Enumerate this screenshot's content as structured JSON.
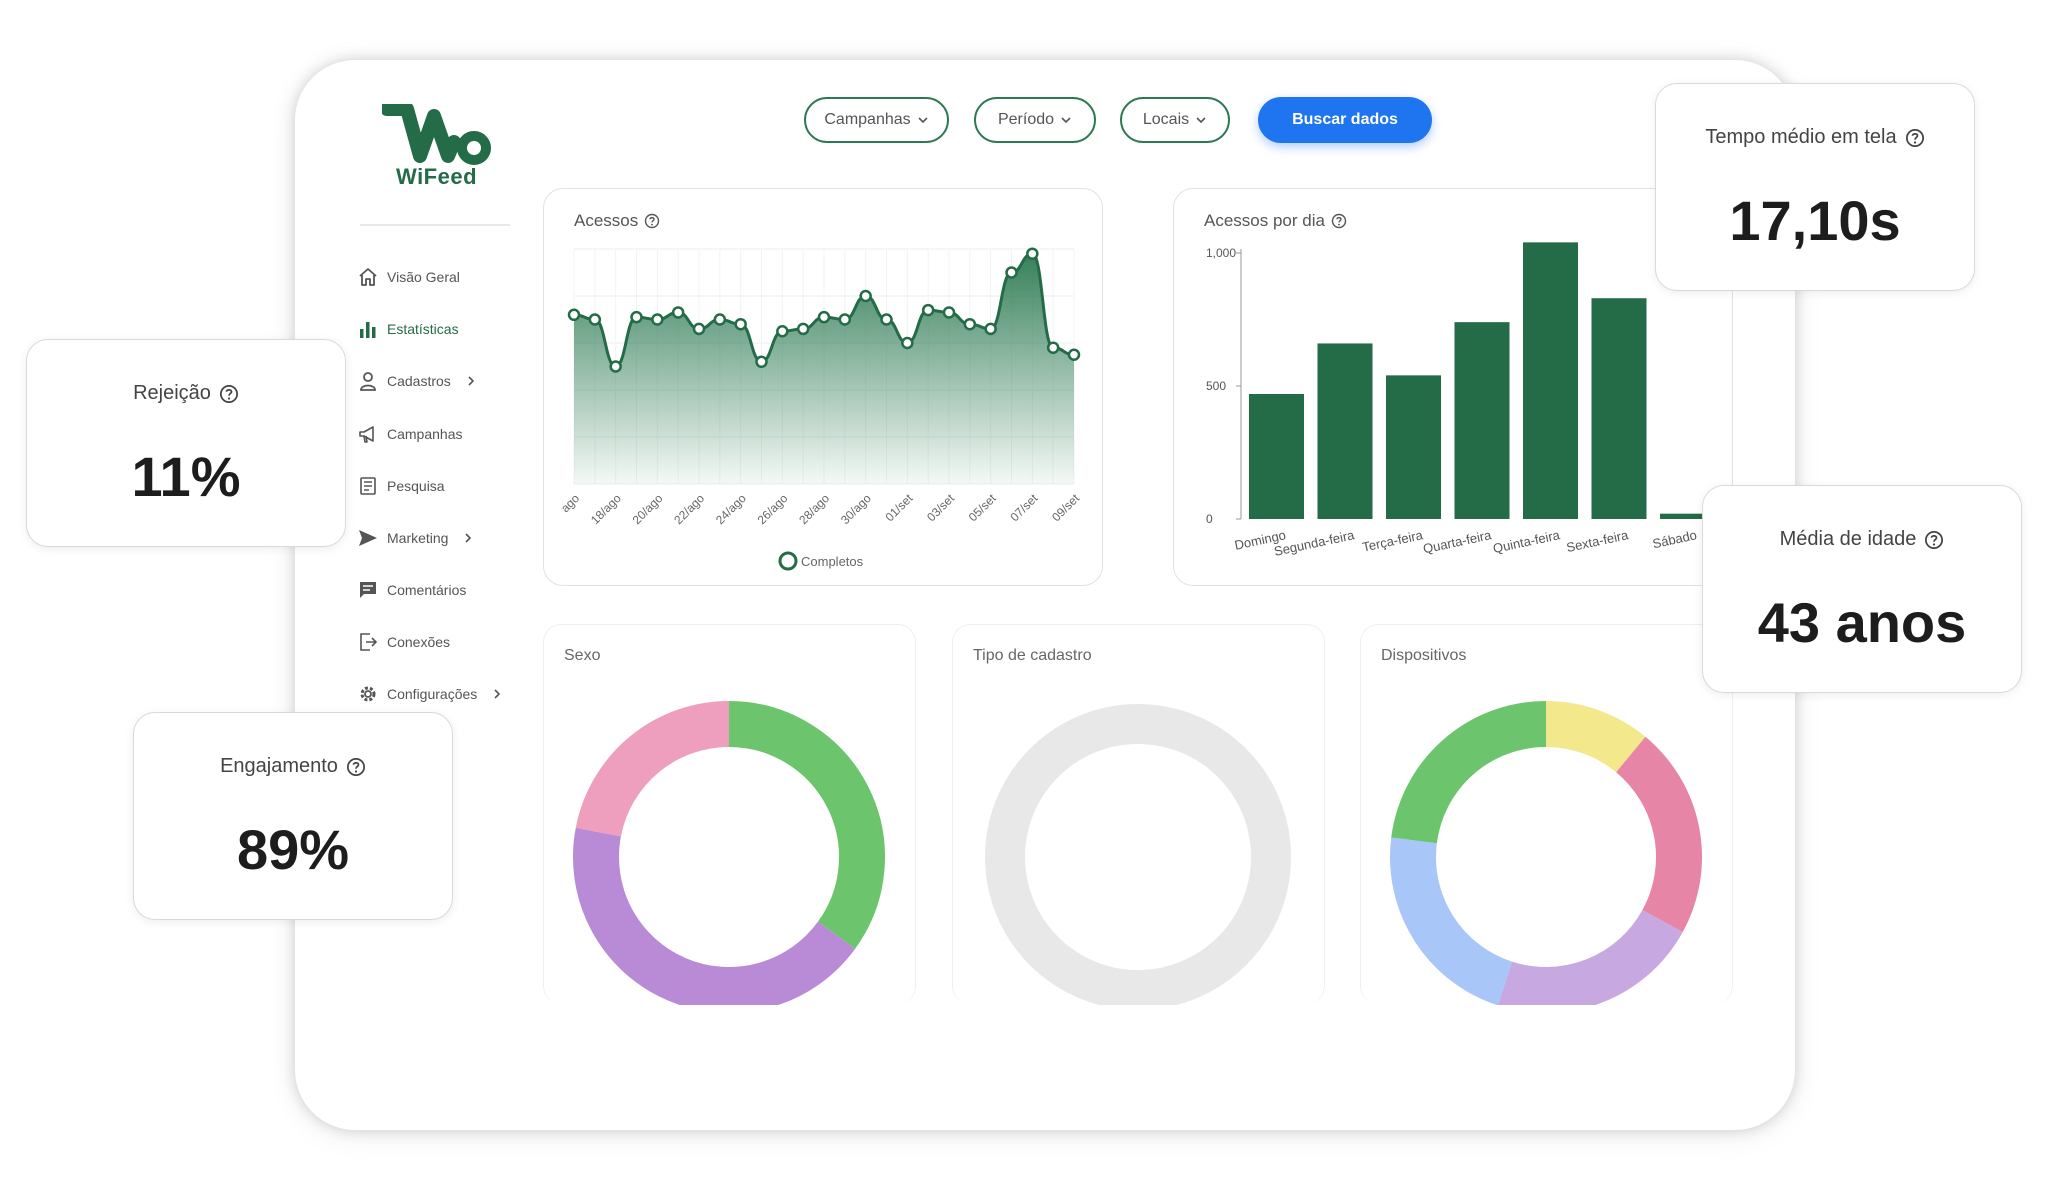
{
  "brand": {
    "name": "WiFeed",
    "color": "#246b47"
  },
  "sidebar": {
    "items": [
      {
        "label": "Visão Geral",
        "icon": "home-icon",
        "active": false,
        "submenu": false
      },
      {
        "label": "Estatísticas",
        "icon": "bar-chart-icon",
        "active": true,
        "submenu": false
      },
      {
        "label": "Cadastros",
        "icon": "user-icon",
        "active": false,
        "submenu": true
      },
      {
        "label": "Campanhas",
        "icon": "megaphone-icon",
        "active": false,
        "submenu": false
      },
      {
        "label": "Pesquisa",
        "icon": "survey-icon",
        "active": false,
        "submenu": false
      },
      {
        "label": "Marketing",
        "icon": "send-icon",
        "active": false,
        "submenu": true
      },
      {
        "label": "Comentários",
        "icon": "comment-icon",
        "active": false,
        "submenu": false
      },
      {
        "label": "Conexões",
        "icon": "logout-icon",
        "active": false,
        "submenu": false
      },
      {
        "label": "Configurações",
        "icon": "gear-icon",
        "active": false,
        "submenu": true
      }
    ]
  },
  "filters": {
    "campanhas": "Campanhas",
    "periodo": "Período",
    "locais": "Locais",
    "search_button": "Buscar dados"
  },
  "colors": {
    "accent": "#246b47",
    "primary_button": "#1f74f0"
  },
  "kpis": {
    "tempo": {
      "label": "Tempo médio em tela",
      "value": "17,10s"
    },
    "rejeicao": {
      "label": "Rejeição",
      "value": "11%"
    },
    "idade": {
      "label": "Média de idade",
      "value": "43 anos"
    },
    "engajamento": {
      "label": "Engajamento",
      "value": "89%"
    }
  },
  "cards": {
    "acessos": "Acessos",
    "acessos_dia": "Acessos por dia",
    "sexo": "Sexo",
    "tipo_cadastro": "Tipo de cadastro",
    "dispositivos": "Dispositivos"
  },
  "chart_data": [
    {
      "type": "area",
      "title": "Acessos",
      "x_tick_labels": [
        "ago",
        "18/ago",
        "20/ago",
        "22/ago",
        "24/ago",
        "26/ago",
        "28/ago",
        "30/ago",
        "01/set",
        "03/set",
        "05/set",
        "07/set",
        "09/set"
      ],
      "series": [
        {
          "name": "Completos",
          "values": [
            72,
            70,
            50,
            71,
            70,
            73,
            66,
            70,
            68,
            52,
            65,
            66,
            71,
            70,
            80,
            70,
            60,
            74,
            73,
            68,
            66,
            90,
            98,
            58,
            55
          ]
        }
      ],
      "ylim": [
        0,
        100
      ],
      "grid": true,
      "legend": "bottom"
    },
    {
      "type": "bar",
      "title": "Acessos por dia",
      "categories": [
        "Domingo",
        "Segunda-feira",
        "Terça-feira",
        "Quarta-feira",
        "Quinta-feira",
        "Sexta-feira",
        "Sábado"
      ],
      "values": [
        470,
        660,
        540,
        740,
        1040,
        830,
        20
      ],
      "y_ticks": [
        "0",
        "500",
        "1,000"
      ],
      "ylim": [
        0,
        1000
      ],
      "color": "#246b47"
    },
    {
      "type": "pie",
      "title": "Sexo",
      "slices": [
        {
          "value": 35,
          "color": "#6cc56c"
        },
        {
          "value": 43,
          "color": "#b98ad6"
        },
        {
          "value": 22,
          "color": "#ee9fbd"
        }
      ]
    },
    {
      "type": "pie",
      "title": "Tipo de cadastro",
      "slices": [
        {
          "value": 100,
          "color": "#e8e8e8"
        }
      ]
    },
    {
      "type": "pie",
      "title": "Dispositivos",
      "slices": [
        {
          "value": 11,
          "color": "#f3e88c"
        },
        {
          "value": 22,
          "color": "#e685a6"
        },
        {
          "value": 22,
          "color": "#c8a8e0"
        },
        {
          "value": 22,
          "color": "#a8c6f7"
        },
        {
          "value": 23,
          "color": "#6cc56c"
        }
      ]
    }
  ]
}
